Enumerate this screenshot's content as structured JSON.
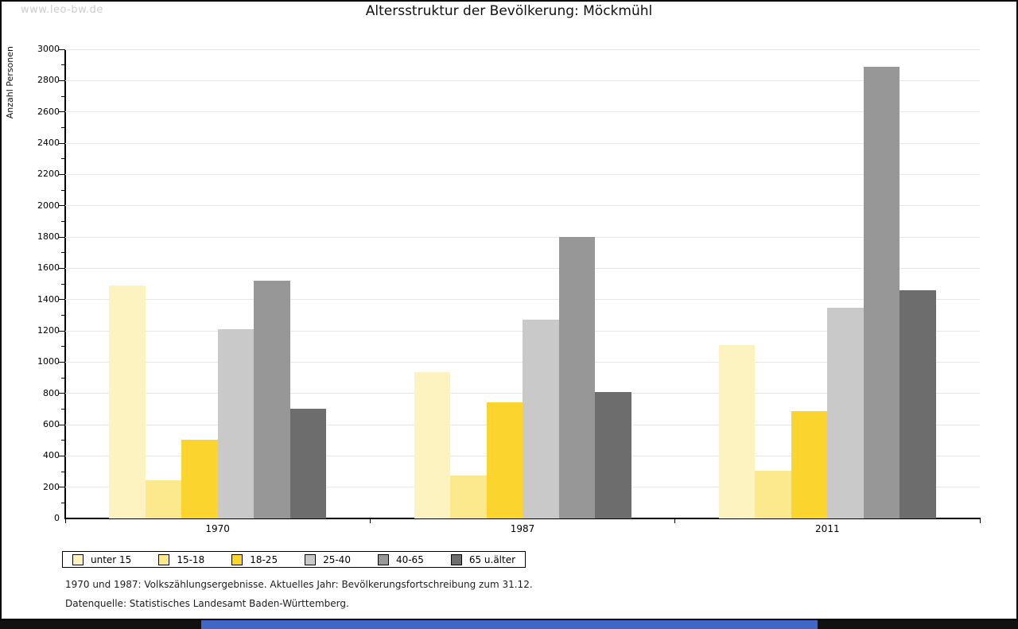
{
  "watermark": "www.leo-bw.de",
  "title": "Altersstruktur der Bevölkerung: Möckmühl",
  "footnotes": {
    "line1": "1970 und 1987: Volkszählungsergebnisse. Aktuelles Jahr: Bevölkerungsfortschreibung zum 31.12.",
    "line2": "Datenquelle: Statistisches Landesamt Baden-Württemberg."
  },
  "chart_data": {
    "type": "bar",
    "title": "Altersstruktur der Bevölkerung: Möckmühl",
    "xlabel": "",
    "ylabel": "Anzahl Personen",
    "ylim": [
      0,
      3000
    ],
    "ytick_step": 200,
    "minor_tick_step": 100,
    "grid": true,
    "legend_position": "bottom",
    "categories": [
      "1970",
      "1987",
      "2011"
    ],
    "series": [
      {
        "name": "unter 15",
        "color": "#FCF3C1",
        "values": [
          1490,
          935,
          1110
        ]
      },
      {
        "name": "15-18",
        "color": "#FCE88D",
        "values": [
          245,
          275,
          305
        ]
      },
      {
        "name": "18-25",
        "color": "#FCD42E",
        "values": [
          505,
          740,
          685
        ]
      },
      {
        "name": "25-40",
        "color": "#C9C9C9",
        "values": [
          1210,
          1270,
          1350
        ]
      },
      {
        "name": "40-65",
        "color": "#979797",
        "values": [
          1520,
          1800,
          2890
        ]
      },
      {
        "name": "65 u.älter",
        "color": "#6D6D6D",
        "values": [
          700,
          810,
          1460
        ]
      }
    ]
  },
  "bottom_bar": {
    "track_color": "#111111",
    "range_color": "#4066C7"
  }
}
